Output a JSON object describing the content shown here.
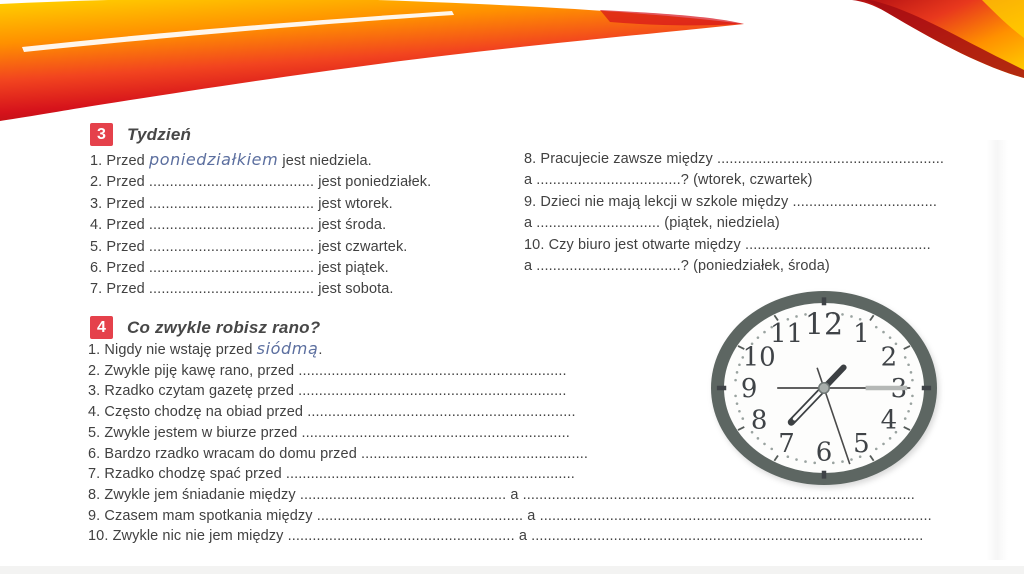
{
  "exercise3": {
    "number": "3",
    "title": "Tydzień",
    "items_left": [
      {
        "pre": "1. Przed ",
        "hand": "poniedziałkiem",
        "post": " jest niedziela."
      },
      {
        "text": "2. Przed ........................................ jest poniedziałek."
      },
      {
        "text": "3. Przed ........................................ jest wtorek."
      },
      {
        "text": "4. Przed ........................................ jest środa."
      },
      {
        "text": "5. Przed ........................................ jest czwartek."
      },
      {
        "text": "6. Przed ........................................ jest piątek."
      },
      {
        "text": "7. Przed ........................................ jest sobota."
      }
    ],
    "items_right": [
      {
        "text": "8. Pracujecie zawsze między ......................................................."
      },
      {
        "text": "a ...................................? (wtorek, czwartek)"
      },
      {
        "text": "9. Dzieci nie mają lekcji w szkole między ..................................."
      },
      {
        "text": "a .............................. (piątek, niedziela)"
      },
      {
        "text": "10. Czy biuro jest otwarte między ............................................."
      },
      {
        "text": "a ...................................? (poniedziałek, środa)"
      }
    ]
  },
  "exercise4": {
    "number": "4",
    "title": "Co zwykle robisz rano?",
    "items": [
      {
        "pre": "1. Nigdy nie wstaję przed ",
        "hand": "siódmą",
        "post": "."
      },
      {
        "text": "2. Zwykle piję kawę rano, przed ................................................................."
      },
      {
        "text": "3. Rzadko czytam gazetę przed ................................................................."
      },
      {
        "text": "4. Często chodzę na obiad przed ................................................................."
      },
      {
        "text": "5. Zwykle jestem w biurze przed ................................................................."
      },
      {
        "text": "6. Bardzo rzadko wracam do domu przed ......................................................."
      },
      {
        "text": "7. Rzadko chodzę spać przed ......................................................................"
      },
      {
        "text": "8. Zwykle jem śniadanie między .................................................. a ..............................................................................................."
      },
      {
        "text": "9. Czasem mam spotkania między .................................................. a ..............................................................................................."
      },
      {
        "text": "10. Zwykle nic nie jem między ....................................................... a ..............................................................................................."
      }
    ]
  },
  "clock": {
    "numbers": [
      "12",
      "1",
      "2",
      "3",
      "4",
      "5",
      "6",
      "7",
      "8",
      "9",
      "10",
      "11"
    ],
    "rim_color": "#5d6662",
    "face_color": "#fdfdfc",
    "number_color": "#3f4347",
    "dot_color": "#9aa3a0",
    "hands": [
      {
        "name": "minute-hand",
        "type": "minute",
        "angle": 90,
        "length": 0.83,
        "tail": 0.45
      },
      {
        "name": "hour-hand",
        "type": "outline",
        "angle": 219,
        "length": 0.5
      },
      {
        "name": "hour-hand-counterweight",
        "type": "dark",
        "angle": 39,
        "length": 0.3
      },
      {
        "name": "second-hand",
        "type": "thin",
        "angle": 164,
        "length": 0.9,
        "tail": 0.24
      }
    ]
  },
  "decor": {
    "wave_palette": {
      "yellow": "#ffd400",
      "orange": "#ff8a00",
      "red": "#e8251c",
      "dark_red": "#a50d12"
    }
  }
}
